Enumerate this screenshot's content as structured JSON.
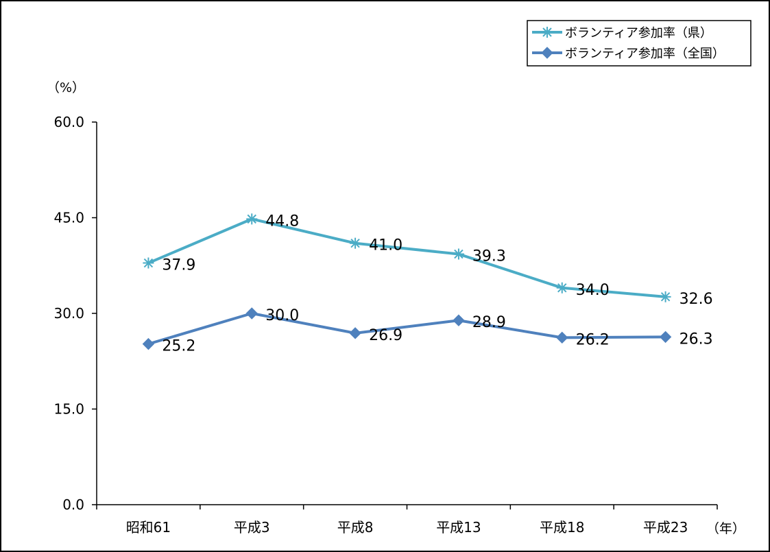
{
  "chart_data": {
    "type": "line",
    "categories": [
      "昭和61",
      "平成3",
      "平成8",
      "平成13",
      "平成18",
      "平成23"
    ],
    "series": [
      {
        "name": "ボランティア参加率（県）",
        "values": [
          37.9,
          44.8,
          41.0,
          39.3,
          34.0,
          32.6
        ],
        "labels": [
          "37.9",
          "44.8",
          "41.0",
          "39.3",
          "34.0",
          "32.6"
        ],
        "color": "#4bacc6",
        "marker": "asterisk"
      },
      {
        "name": "ボランティア参加率（全国）",
        "values": [
          25.2,
          30.0,
          26.9,
          28.9,
          26.2,
          26.3
        ],
        "labels": [
          "25.2",
          "30.0",
          "26.9",
          "28.9",
          "26.2",
          "26.3"
        ],
        "color": "#4f81bd",
        "marker": "diamond"
      }
    ],
    "y_unit": "（%）",
    "x_unit": "（年）",
    "ylim": [
      0,
      60
    ],
    "yticks": [
      0,
      15,
      30,
      45,
      60
    ],
    "ytick_labels": [
      "0.0",
      "15.0",
      "30.0",
      "45.0",
      "60.0"
    ],
    "grid": false,
    "legend_position": "top-right"
  }
}
